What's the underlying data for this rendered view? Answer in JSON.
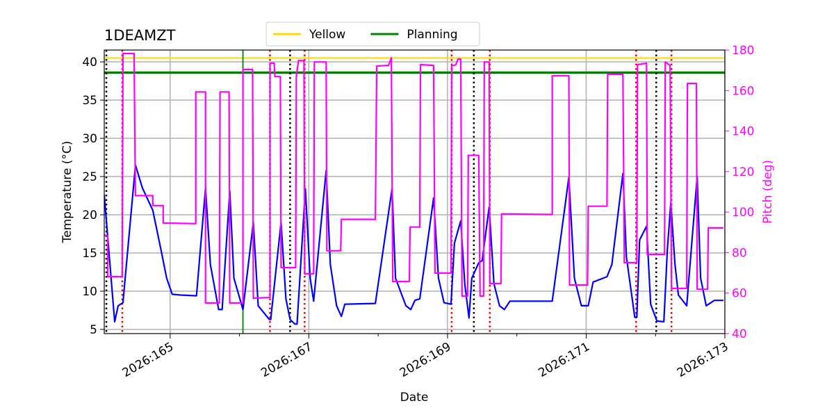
{
  "chart_data": {
    "type": "line",
    "title": "1DEAMZT",
    "xlabel": "Date",
    "ylabel": "Temperature (°C)",
    "y2label": "Pitch (deg)",
    "y2color": "magenta",
    "xlim": [
      164.05,
      173.0
    ],
    "xticks": [
      {
        "value": 165,
        "label": "2026:165"
      },
      {
        "value": 167,
        "label": "2026:167"
      },
      {
        "value": 169,
        "label": "2026:169"
      },
      {
        "value": 171,
        "label": "2026:171"
      },
      {
        "value": 173,
        "label": "2026:173"
      }
    ],
    "xminorticks": [
      166,
      168,
      170,
      172
    ],
    "ylim": [
      4.45,
      41.55
    ],
    "yticks": [
      5,
      10,
      15,
      20,
      25,
      30,
      35,
      40
    ],
    "y2lim": [
      40,
      180
    ],
    "y2ticks": [
      40,
      60,
      80,
      100,
      120,
      140,
      160,
      180
    ],
    "grid": true,
    "legend": "upper center",
    "hlines": [
      {
        "name": "Yellow",
        "color": "gold",
        "value": 40.5
      },
      {
        "name": "Planning",
        "color": "green",
        "value": 38.6
      }
    ],
    "vlines": [
      {
        "color": "black",
        "dashed": true,
        "x": 164.08
      },
      {
        "color": "black",
        "dashed": true,
        "x": 166.73
      },
      {
        "color": "black",
        "dashed": true,
        "x": 169.38
      },
      {
        "color": "black",
        "dashed": true,
        "x": 172.01
      },
      {
        "color": "red",
        "dashed": true,
        "x": 164.31
      },
      {
        "color": "red",
        "dashed": true,
        "x": 166.44
      },
      {
        "color": "red",
        "dashed": true,
        "x": 166.94
      },
      {
        "color": "red",
        "dashed": true,
        "x": 169.06
      },
      {
        "color": "red",
        "dashed": true,
        "x": 169.61
      },
      {
        "color": "red",
        "dashed": true,
        "x": 171.72
      },
      {
        "color": "red",
        "dashed": true,
        "x": 172.23
      },
      {
        "color": "green",
        "dashed": false,
        "x": 166.05
      }
    ],
    "series": [
      {
        "color": "blue",
        "axis": "y",
        "x": [
          164.05,
          164.2,
          164.25,
          164.32,
          164.5,
          164.6,
          164.75,
          164.88,
          164.95,
          165.03,
          165.15,
          165.38,
          165.51,
          165.58,
          165.7,
          165.75,
          165.86,
          165.92,
          166.05,
          166.2,
          166.27,
          166.43,
          166.45,
          166.6,
          166.67,
          166.73,
          166.8,
          166.83,
          166.95,
          167.02,
          167.07,
          167.25,
          167.31,
          167.4,
          167.47,
          167.52,
          167.96,
          168.2,
          168.25,
          168.4,
          168.47,
          168.53,
          168.6,
          168.8,
          168.87,
          168.95,
          169.05,
          169.1,
          169.19,
          169.25,
          169.31,
          169.35,
          169.45,
          169.5,
          169.6,
          169.67,
          169.75,
          169.82,
          169.9,
          170.51,
          170.75,
          170.83,
          170.93,
          171.03,
          171.1,
          171.3,
          171.37,
          171.53,
          171.58,
          171.7,
          171.73,
          171.77,
          171.87,
          171.93,
          172.02,
          172.12,
          172.17,
          172.22,
          172.28,
          172.33,
          172.45,
          172.6,
          172.65,
          172.73,
          172.85,
          172.98
        ],
        "values": [
          22.6,
          6.0,
          8.1,
          8.5,
          26.5,
          23.5,
          20.6,
          14.9,
          11.7,
          9.6,
          9.5,
          9.4,
          23.5,
          13.5,
          7.6,
          7.6,
          23.1,
          11.7,
          7.6,
          19.0,
          8.1,
          6.3,
          6.3,
          19.0,
          9.0,
          6.3,
          5.7,
          5.7,
          23.4,
          11.7,
          8.7,
          25.8,
          13.5,
          8.1,
          6.7,
          8.3,
          8.4,
          23.4,
          11.7,
          8.1,
          7.6,
          8.8,
          9.0,
          22.2,
          11.7,
          8.5,
          8.3,
          16.3,
          19.2,
          10.9,
          6.5,
          11.7,
          13.7,
          14.0,
          21.0,
          11.0,
          8.1,
          7.6,
          8.7,
          8.7,
          24.9,
          11.7,
          8.1,
          8.1,
          11.2,
          11.9,
          13.5,
          25.4,
          14.5,
          6.6,
          6.6,
          16.7,
          18.5,
          8.3,
          6.1,
          6.0,
          15.4,
          21.6,
          13.5,
          9.5,
          8.1,
          25.0,
          11.7,
          8.1,
          8.8,
          8.8
        ]
      },
      {
        "color": "magenta",
        "axis": "y2",
        "x": [
          164.05,
          164.1,
          164.1,
          164.31,
          164.32,
          164.48,
          164.5,
          164.75,
          164.75,
          164.9,
          164.9,
          165.37,
          165.37,
          165.51,
          165.51,
          165.71,
          165.72,
          165.85,
          165.86,
          166.05,
          166.05,
          166.19,
          166.2,
          166.44,
          166.44,
          166.5,
          166.51,
          166.59,
          166.6,
          166.81,
          166.82,
          166.85,
          166.93,
          166.94,
          167.07,
          167.08,
          167.25,
          167.26,
          167.46,
          167.47,
          167.96,
          167.98,
          168.15,
          168.19,
          168.21,
          168.45,
          168.46,
          168.6,
          168.61,
          168.8,
          168.82,
          169.05,
          169.06,
          169.12,
          169.15,
          169.19,
          169.21,
          169.29,
          169.3,
          169.45,
          169.47,
          169.52,
          169.53,
          169.6,
          169.61,
          169.77,
          169.78,
          170.51,
          170.51,
          170.75,
          170.76,
          171.02,
          171.03,
          171.3,
          171.31,
          171.53,
          171.55,
          171.73,
          171.74,
          171.87,
          171.88,
          172.13,
          172.14,
          172.21,
          172.23,
          172.45,
          172.46,
          172.59,
          172.6,
          172.75,
          172.76,
          172.98
        ],
        "values": [
          88.8,
          88.1,
          68.1,
          68.1,
          178.3,
          178.3,
          108.1,
          108.1,
          103.2,
          103.2,
          94.6,
          94.3,
          159.3,
          159.3,
          55.1,
          55.1,
          159.3,
          159.3,
          55.1,
          55.1,
          170.4,
          170.4,
          57.5,
          57.8,
          173.5,
          173.5,
          166.9,
          166.9,
          72.6,
          72.6,
          166.9,
          174.8,
          174.8,
          69.5,
          69.5,
          174.1,
          174.1,
          80.9,
          80.9,
          96.4,
          96.4,
          172.1,
          172.4,
          176.2,
          65.7,
          65.7,
          92.6,
          92.6,
          172.8,
          172.4,
          69.9,
          69.9,
          172.1,
          172.8,
          175.5,
          175.5,
          58.5,
          58.5,
          128.0,
          128.0,
          58.5,
          58.5,
          174.1,
          174.1,
          64.7,
          64.7,
          99.1,
          98.8,
          167.3,
          167.3,
          64.0,
          64.0,
          102.9,
          102.9,
          168.0,
          168.0,
          75.0,
          75.0,
          172.8,
          173.5,
          79.1,
          79.1,
          174.1,
          172.4,
          62.3,
          62.3,
          163.5,
          163.5,
          61.9,
          61.9,
          92.2,
          92.2
        ]
      }
    ]
  }
}
